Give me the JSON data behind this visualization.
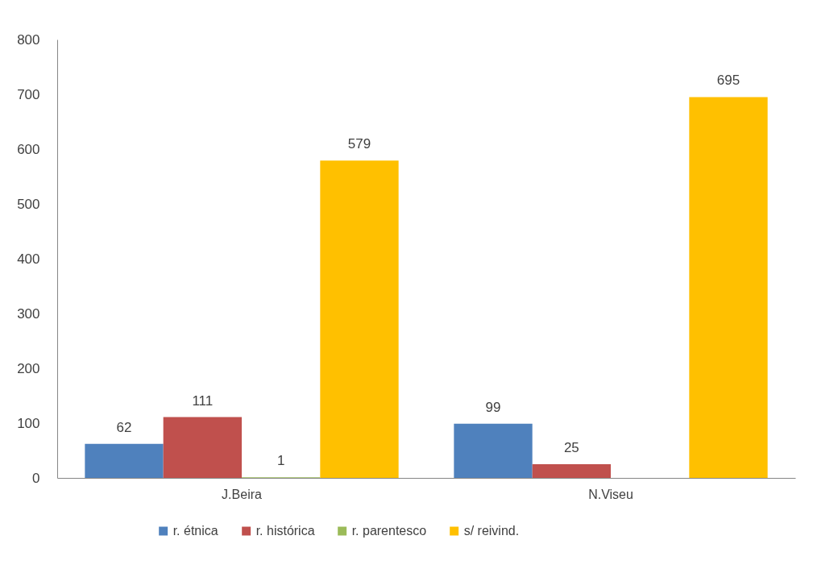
{
  "chart_data": {
    "type": "bar",
    "categories": [
      "J.Beira",
      "N.Viseu"
    ],
    "series": [
      {
        "name": "r. étnica",
        "color": "#4f81bd",
        "values": [
          62,
          99
        ]
      },
      {
        "name": "r. histórica",
        "color": "#c0504d",
        "values": [
          111,
          25
        ]
      },
      {
        "name": "r. parentesco",
        "color": "#9bbb59",
        "values": [
          1,
          null
        ]
      },
      {
        "name": "s/ reivind.",
        "color": "#ffc000",
        "values": [
          579,
          695
        ]
      }
    ],
    "ylim": [
      0,
      800
    ],
    "yticks": [
      0,
      100,
      200,
      300,
      400,
      500,
      600,
      700,
      800
    ],
    "grid": false,
    "legend": "bottom",
    "data_labels": true
  }
}
